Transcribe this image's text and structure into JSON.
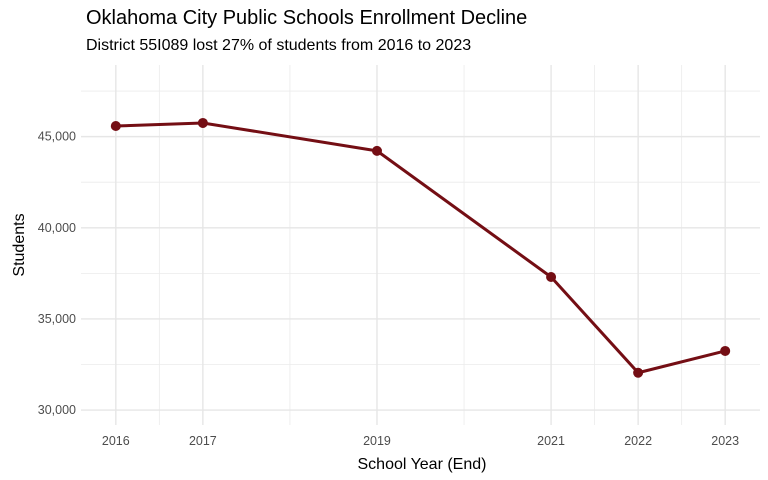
{
  "chart_data": {
    "type": "line",
    "title": "Oklahoma City Public Schools Enrollment Decline",
    "subtitle": "District 55I089 lost 27% of students from 2016 to 2023",
    "xlabel": "School Year (End)",
    "ylabel": "Students",
    "x": [
      2016,
      2017,
      2019,
      2021,
      2022,
      2023
    ],
    "x_tick_labels": [
      "2016",
      "2017",
      "2019",
      "2021",
      "2022",
      "2023"
    ],
    "series": [
      {
        "name": "Students",
        "values": [
          45584,
          45750,
          44220,
          37300,
          32047,
          33243
        ],
        "color": "#740e14"
      }
    ],
    "y_ticks": [
      30000,
      35000,
      40000,
      45000
    ],
    "y_tick_labels": [
      "30,000",
      "35,000",
      "40,000",
      "45,000"
    ],
    "xlim": [
      2015.6,
      2023.4
    ],
    "ylim": [
      29180,
      48930
    ],
    "grid": true,
    "legend": "none"
  }
}
